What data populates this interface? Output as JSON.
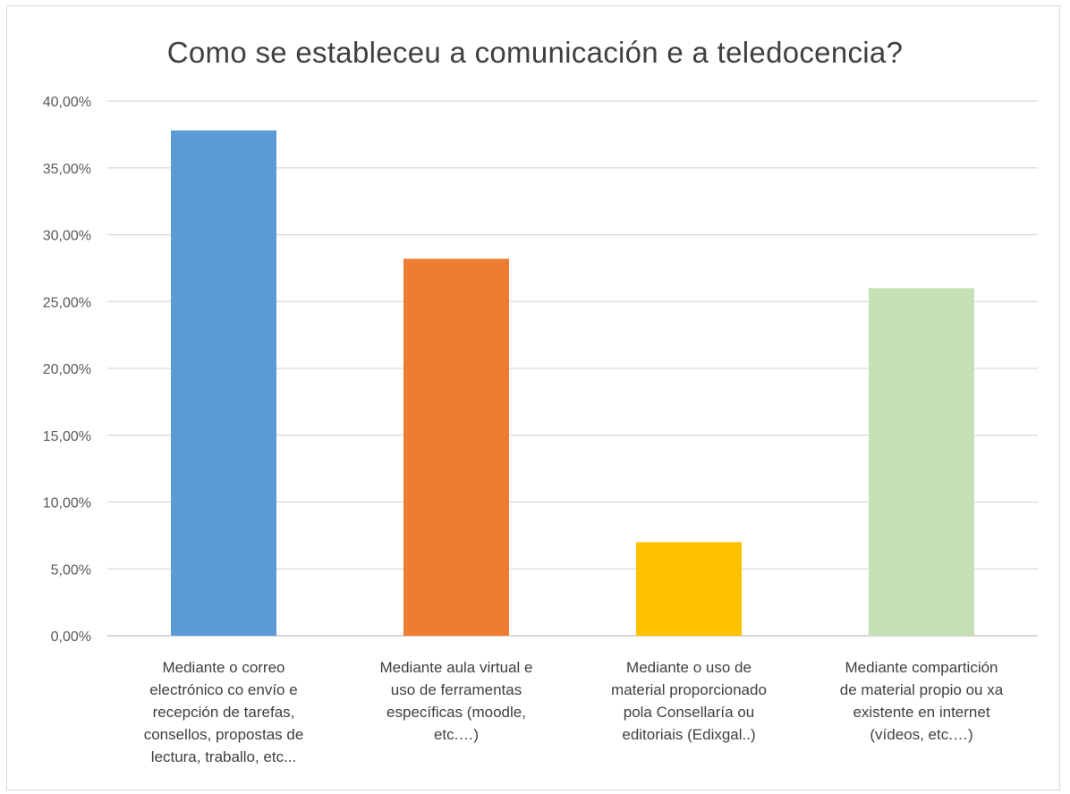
{
  "chart_data": {
    "type": "bar",
    "title": "Como se estableceu a comunicación e a teledocencia?",
    "categories": [
      "Mediante o correo\nelectrónico co envío e\nrecepción de tarefas,\nconsellos, propostas de\nlectura, traballo, etc...",
      "Mediante aula virtual e\nuso de ferramentas\nespecíficas (moodle,\netc.…)",
      "Mediante o uso de\nmaterial proporcionado\npola Consellaría ou\neditoriais (Edixgal..)",
      "Mediante compartición\nde material propio ou xa\nexistente en internet\n(vídeos, etc.…)"
    ],
    "values": [
      37.8,
      28.2,
      7.0,
      26.0
    ],
    "colors": [
      "#5b9bd5",
      "#ed7d31",
      "#ffc000",
      "#c5e0b4"
    ],
    "ylim": [
      0,
      40
    ],
    "yticks": [
      "0,00%",
      "5,00%",
      "10,00%",
      "15,00%",
      "20,00%",
      "25,00%",
      "30,00%",
      "35,00%",
      "40,00%"
    ],
    "grid": true,
    "xlabel": "",
    "ylabel": ""
  }
}
